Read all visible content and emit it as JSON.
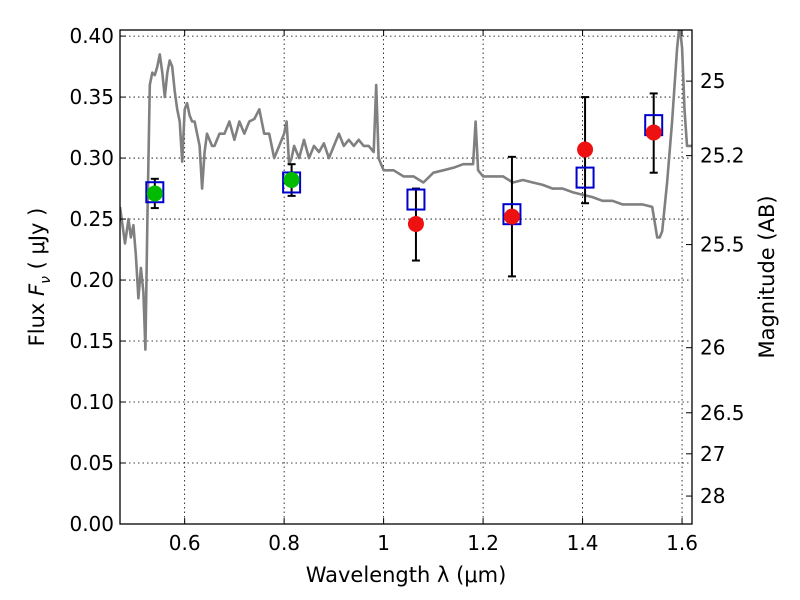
{
  "chart_data": {
    "type": "scatter",
    "xlabel": "Wavelength  λ (μm)",
    "ylabel_parts": [
      "Flux  ",
      "F",
      "ν",
      "  (  μJy  )"
    ],
    "y2label": "Magnitude (AB)",
    "xlim": [
      0.47,
      1.62
    ],
    "ylim": [
      0.0,
      0.405
    ],
    "grid": true,
    "x_ticks": [
      0.6,
      0.8,
      1.0,
      1.2,
      1.4,
      1.6
    ],
    "x_tick_labels": [
      "0.6",
      "0.8",
      "1",
      "1.2",
      "1.4",
      "1.6"
    ],
    "y_ticks": [
      0.0,
      0.05,
      0.1,
      0.15,
      0.2,
      0.25,
      0.3,
      0.35,
      0.4
    ],
    "y_tick_labels": [
      "0.00",
      "0.05",
      "0.10",
      "0.15",
      "0.20",
      "0.25",
      "0.30",
      "0.35",
      "0.40"
    ],
    "mag_ticks": [
      25,
      25.2,
      25.5,
      26,
      26.5,
      27,
      28
    ],
    "mag_tick_labels": [
      "25",
      "25.2",
      "25.5",
      "26",
      "26.5",
      "27",
      "28"
    ],
    "colors": {
      "model": "#808080",
      "green": "#00bb00",
      "red": "#ee1111",
      "box": "#0000cc",
      "errorbar": "#000000"
    },
    "series": [
      {
        "name": "model SED",
        "kind": "line",
        "x": [
          0.47,
          0.48,
          0.487,
          0.492,
          0.497,
          0.502,
          0.507,
          0.512,
          0.517,
          0.521,
          0.525,
          0.53,
          0.535,
          0.54,
          0.545,
          0.55,
          0.555,
          0.56,
          0.565,
          0.57,
          0.575,
          0.58,
          0.585,
          0.59,
          0.595,
          0.6,
          0.605,
          0.61,
          0.615,
          0.62,
          0.625,
          0.63,
          0.635,
          0.64,
          0.645,
          0.65,
          0.655,
          0.66,
          0.665,
          0.67,
          0.68,
          0.69,
          0.7,
          0.71,
          0.72,
          0.73,
          0.74,
          0.75,
          0.76,
          0.77,
          0.78,
          0.79,
          0.8,
          0.805,
          0.81,
          0.815,
          0.82,
          0.83,
          0.84,
          0.85,
          0.86,
          0.87,
          0.88,
          0.89,
          0.9,
          0.91,
          0.92,
          0.93,
          0.94,
          0.95,
          0.96,
          0.97,
          0.98,
          0.985,
          0.99,
          0.995,
          1.0,
          1.02,
          1.04,
          1.06,
          1.08,
          1.1,
          1.12,
          1.14,
          1.16,
          1.18,
          1.185,
          1.19,
          1.2,
          1.22,
          1.24,
          1.26,
          1.28,
          1.3,
          1.32,
          1.34,
          1.36,
          1.38,
          1.4,
          1.42,
          1.44,
          1.46,
          1.48,
          1.5,
          1.52,
          1.54,
          1.55,
          1.555,
          1.56,
          1.57,
          1.58,
          1.59,
          1.595,
          1.6,
          1.605,
          1.61,
          1.62
        ],
        "y": [
          0.26,
          0.23,
          0.25,
          0.235,
          0.245,
          0.22,
          0.185,
          0.21,
          0.19,
          0.143,
          0.25,
          0.36,
          0.37,
          0.368,
          0.375,
          0.385,
          0.37,
          0.35,
          0.37,
          0.38,
          0.375,
          0.355,
          0.34,
          0.33,
          0.297,
          0.34,
          0.345,
          0.335,
          0.33,
          0.33,
          0.32,
          0.31,
          0.275,
          0.305,
          0.32,
          0.315,
          0.31,
          0.31,
          0.315,
          0.32,
          0.32,
          0.33,
          0.315,
          0.33,
          0.32,
          0.33,
          0.332,
          0.34,
          0.32,
          0.32,
          0.3,
          0.31,
          0.32,
          0.33,
          0.295,
          0.3,
          0.31,
          0.3,
          0.315,
          0.3,
          0.31,
          0.305,
          0.312,
          0.3,
          0.31,
          0.32,
          0.31,
          0.315,
          0.31,
          0.315,
          0.31,
          0.31,
          0.305,
          0.36,
          0.3,
          0.295,
          0.29,
          0.29,
          0.285,
          0.285,
          0.28,
          0.288,
          0.29,
          0.292,
          0.295,
          0.295,
          0.33,
          0.29,
          0.285,
          0.285,
          0.285,
          0.28,
          0.282,
          0.28,
          0.278,
          0.275,
          0.275,
          0.272,
          0.27,
          0.268,
          0.265,
          0.265,
          0.262,
          0.262,
          0.262,
          0.26,
          0.235,
          0.235,
          0.24,
          0.28,
          0.33,
          0.39,
          0.41,
          0.39,
          0.34,
          0.31,
          0.31
        ]
      },
      {
        "name": "observed (green)",
        "kind": "points",
        "x": [
          0.54,
          0.815
        ],
        "y": [
          0.271,
          0.282
        ]
      },
      {
        "name": "observed (red)",
        "kind": "points",
        "x": [
          1.065,
          1.258,
          1.405,
          1.543
        ],
        "y": [
          0.246,
          0.252,
          0.307,
          0.321
        ]
      },
      {
        "name": "model photometry (boxes)",
        "kind": "points",
        "x": [
          0.54,
          0.815,
          1.065,
          1.258,
          1.405,
          1.543
        ],
        "y": [
          0.272,
          0.28,
          0.266,
          0.254,
          0.284,
          0.327
        ]
      },
      {
        "name": "error bars",
        "kind": "errorbar",
        "x": [
          0.54,
          0.815,
          1.065,
          1.258,
          1.405,
          1.543
        ],
        "ylow": [
          0.259,
          0.269,
          0.216,
          0.203,
          0.263,
          0.288
        ],
        "yhigh": [
          0.283,
          0.295,
          0.275,
          0.301,
          0.35,
          0.353
        ]
      }
    ]
  }
}
